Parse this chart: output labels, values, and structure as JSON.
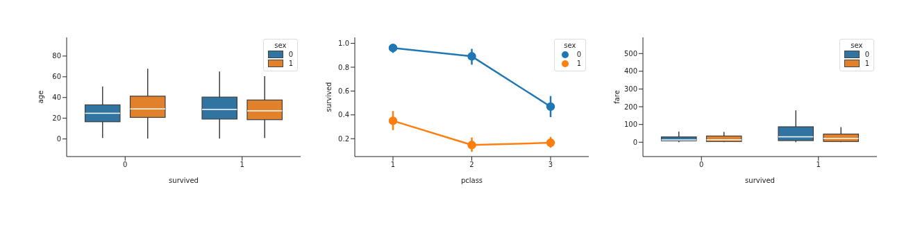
{
  "chart_data": [
    {
      "type": "box",
      "xlabel": "survived",
      "ylabel": "age",
      "categories": [
        "0",
        "1"
      ],
      "legend_title": "sex",
      "legend": "top right",
      "ylim": [
        -17,
        98
      ],
      "yticks": [
        0,
        20,
        40,
        60,
        80
      ],
      "series": [
        {
          "name": "0",
          "color": "#3274a1",
          "boxes": [
            {
              "low": 0.9,
              "q1": 16.6,
              "median": 24.8,
              "q3": 32.9,
              "high": 50.6
            },
            {
              "low": 0.4,
              "q1": 19.2,
              "median": 28.5,
              "q3": 40.4,
              "high": 65
            }
          ]
        },
        {
          "name": "1",
          "color": "#e1812c",
          "boxes": [
            {
              "low": 0.4,
              "q1": 20.8,
              "median": 29,
              "q3": 41.3,
              "high": 67.8
            },
            {
              "low": 0.9,
              "q1": 18.6,
              "median": 27.2,
              "q3": 37.6,
              "high": 60.6
            }
          ]
        }
      ]
    },
    {
      "type": "line",
      "xlabel": "pclass",
      "ylabel": "survived",
      "categories": [
        "1",
        "2",
        "3"
      ],
      "legend_title": "sex",
      "legend": "top right",
      "marker": "circle",
      "ylim": [
        0.05,
        1.05
      ],
      "yticks": [
        0.2,
        0.4,
        0.6,
        0.8,
        {
          "value": 1,
          "label": "1.0"
        }
      ],
      "series": [
        {
          "name": "0",
          "color": "#1f77b4",
          "values": [
            0.962,
            0.891,
            0.469
          ],
          "errors": [
            [
              0.92,
              0.996
            ],
            [
              0.821,
              0.954
            ],
            [
              0.381,
              0.558
            ]
          ]
        },
        {
          "name": "1",
          "color": "#ff7f0e",
          "values": [
            0.35,
            0.147,
            0.166
          ],
          "errors": [
            [
              0.272,
              0.432
            ],
            [
              0.09,
              0.21
            ],
            [
              0.124,
              0.215
            ]
          ]
        }
      ]
    },
    {
      "type": "box",
      "xlabel": "survived",
      "ylabel": "fare",
      "categories": [
        "0",
        "1"
      ],
      "legend_title": "sex",
      "legend": "top right",
      "ylim": [
        -81,
        591
      ],
      "yticks": [
        0,
        100,
        200,
        300,
        400,
        500
      ],
      "series": [
        {
          "name": "0",
          "color": "#3274a1",
          "boxes": [
            {
              "low": 0,
              "q1": 8,
              "median": 13,
              "q3": 30,
              "high": 60
            },
            {
              "low": 0,
              "q1": 9,
              "median": 30,
              "q3": 87,
              "high": 180
            }
          ]
        },
        {
          "name": "1",
          "color": "#e1812c",
          "boxes": [
            {
              "low": 0,
              "q1": 4,
              "median": 14,
              "q3": 35,
              "high": 58
            },
            {
              "low": 0,
              "q1": 4,
              "median": 22,
              "q3": 46,
              "high": 85
            }
          ]
        }
      ]
    }
  ]
}
